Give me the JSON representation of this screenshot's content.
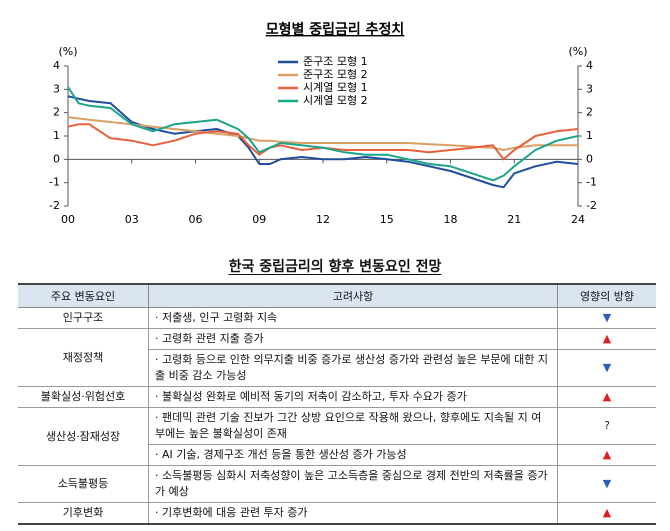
{
  "chart_data": {
    "type": "line",
    "title": "모형별 중립금리 추정치",
    "y_label": "(%)",
    "y2_label": "(%)",
    "x": [
      2000,
      2000.5,
      2001,
      2002,
      2003,
      2004,
      2005,
      2006,
      2007,
      2008,
      2008.5,
      2009,
      2009.5,
      2010,
      2011,
      2012,
      2013,
      2014,
      2015,
      2016,
      2017,
      2018,
      2019,
      2020,
      2020.5,
      2021,
      2022,
      2023,
      2024
    ],
    "xlim": [
      2000,
      2024
    ],
    "xticks": [
      {
        "value": 2000,
        "label": "00"
      },
      {
        "value": 2003,
        "label": "03"
      },
      {
        "value": 2006,
        "label": "06"
      },
      {
        "value": 2009,
        "label": "09"
      },
      {
        "value": 2012,
        "label": "12"
      },
      {
        "value": 2015,
        "label": "15"
      },
      {
        "value": 2018,
        "label": "18"
      },
      {
        "value": 2021,
        "label": "21"
      },
      {
        "value": 2024,
        "label": "24"
      }
    ],
    "ylim": [
      -2,
      4
    ],
    "yticks": [
      -2,
      -1,
      0,
      1,
      2,
      3,
      4
    ],
    "y2lim": [
      -2,
      4
    ],
    "y2ticks": [
      -2,
      -1,
      0,
      1,
      2,
      3,
      4
    ],
    "series": [
      {
        "name": "준구조 모형 1",
        "color": "#1f4e9c",
        "values": [
          2.7,
          2.6,
          2.5,
          2.4,
          1.6,
          1.3,
          1.1,
          1.2,
          1.3,
          1.0,
          0.5,
          -0.2,
          -0.2,
          0.0,
          0.1,
          0.0,
          0.0,
          0.1,
          0.0,
          -0.1,
          -0.3,
          -0.5,
          -0.8,
          -1.1,
          -1.2,
          -0.6,
          -0.3,
          -0.1,
          -0.2
        ]
      },
      {
        "name": "준구조 모형 2",
        "color": "#d9a066",
        "values": [
          1.8,
          1.75,
          1.7,
          1.6,
          1.5,
          1.4,
          1.3,
          1.2,
          1.1,
          1.0,
          0.9,
          0.8,
          0.8,
          0.75,
          0.7,
          0.7,
          0.7,
          0.7,
          0.7,
          0.7,
          0.65,
          0.6,
          0.55,
          0.5,
          0.4,
          0.5,
          0.6,
          0.6,
          0.6
        ]
      },
      {
        "name": "시계열 모형 1",
        "color": "#e8603c",
        "values": [
          1.4,
          1.5,
          1.5,
          0.9,
          0.8,
          0.6,
          0.8,
          1.1,
          1.2,
          1.1,
          0.6,
          0.2,
          0.5,
          0.6,
          0.4,
          0.5,
          0.4,
          0.4,
          0.4,
          0.4,
          0.3,
          0.4,
          0.5,
          0.6,
          0.0,
          0.4,
          1.0,
          1.2,
          1.3
        ]
      },
      {
        "name": "시계열 모형 2",
        "color": "#1aa58b",
        "values": [
          3.1,
          2.4,
          2.3,
          2.2,
          1.5,
          1.2,
          1.5,
          1.6,
          1.7,
          1.3,
          0.9,
          0.3,
          0.5,
          0.7,
          0.6,
          0.5,
          0.3,
          0.2,
          0.2,
          0.0,
          -0.2,
          -0.3,
          -0.6,
          -0.9,
          -0.7,
          -0.3,
          0.4,
          0.8,
          1.0
        ]
      }
    ]
  },
  "table": {
    "title": "한국 중립금리의 향후 변동요인 전망",
    "headers": [
      "주요 변동요인",
      "고려사항",
      "영향의 방향"
    ],
    "groups": [
      {
        "factor": "인구구조",
        "items": [
          {
            "text": "· 저출생, 인구 고령화 지속",
            "direction": "▼",
            "color": "#2e5fb8"
          }
        ]
      },
      {
        "factor": "재정정책",
        "items": [
          {
            "text": "· 고령화 관련 지출 증가",
            "direction": "▲",
            "color": "#e02020"
          },
          {
            "text": "· 고령화 등으로 인한 의무지출 비중 증가로 생산성 증가와 관련성 높은 부문에 대한 지출 비중 감소 가능성",
            "direction": "▼",
            "color": "#2e5fb8"
          }
        ]
      },
      {
        "factor": "불확실성·위험선호",
        "items": [
          {
            "text": "· 불확실성 완화로 예비적 동기의 저축이 감소하고, 투자 수요가 증가",
            "direction": "▲",
            "color": "#e02020"
          }
        ]
      },
      {
        "factor": "생산성·잠재성장",
        "items": [
          {
            "text": "· 팬데믹 관련 기술 진보가 그간 상방 요인으로 작용해 왔으나, 향후에도 지속될 지 여부에는 높은 불확실성이 존재",
            "direction": "?",
            "color": "#222222"
          },
          {
            "text": "· AI 기술, 경제구조 개선 등을 통한 생산성 증가 가능성",
            "direction": "▲",
            "color": "#e02020"
          }
        ]
      },
      {
        "factor": "소득불평등",
        "items": [
          {
            "text": "· 소득불평등 심화시 저축성향이 높은 고소득층을 중심으로 경제 전반의 저축률을 증가가 예상",
            "direction": "▼",
            "color": "#2e5fb8"
          }
        ]
      },
      {
        "factor": "기후변화",
        "items": [
          {
            "text": "· 기후변화에 대응 관련 투자 증가",
            "direction": "▲",
            "color": "#e02020"
          }
        ]
      }
    ]
  }
}
